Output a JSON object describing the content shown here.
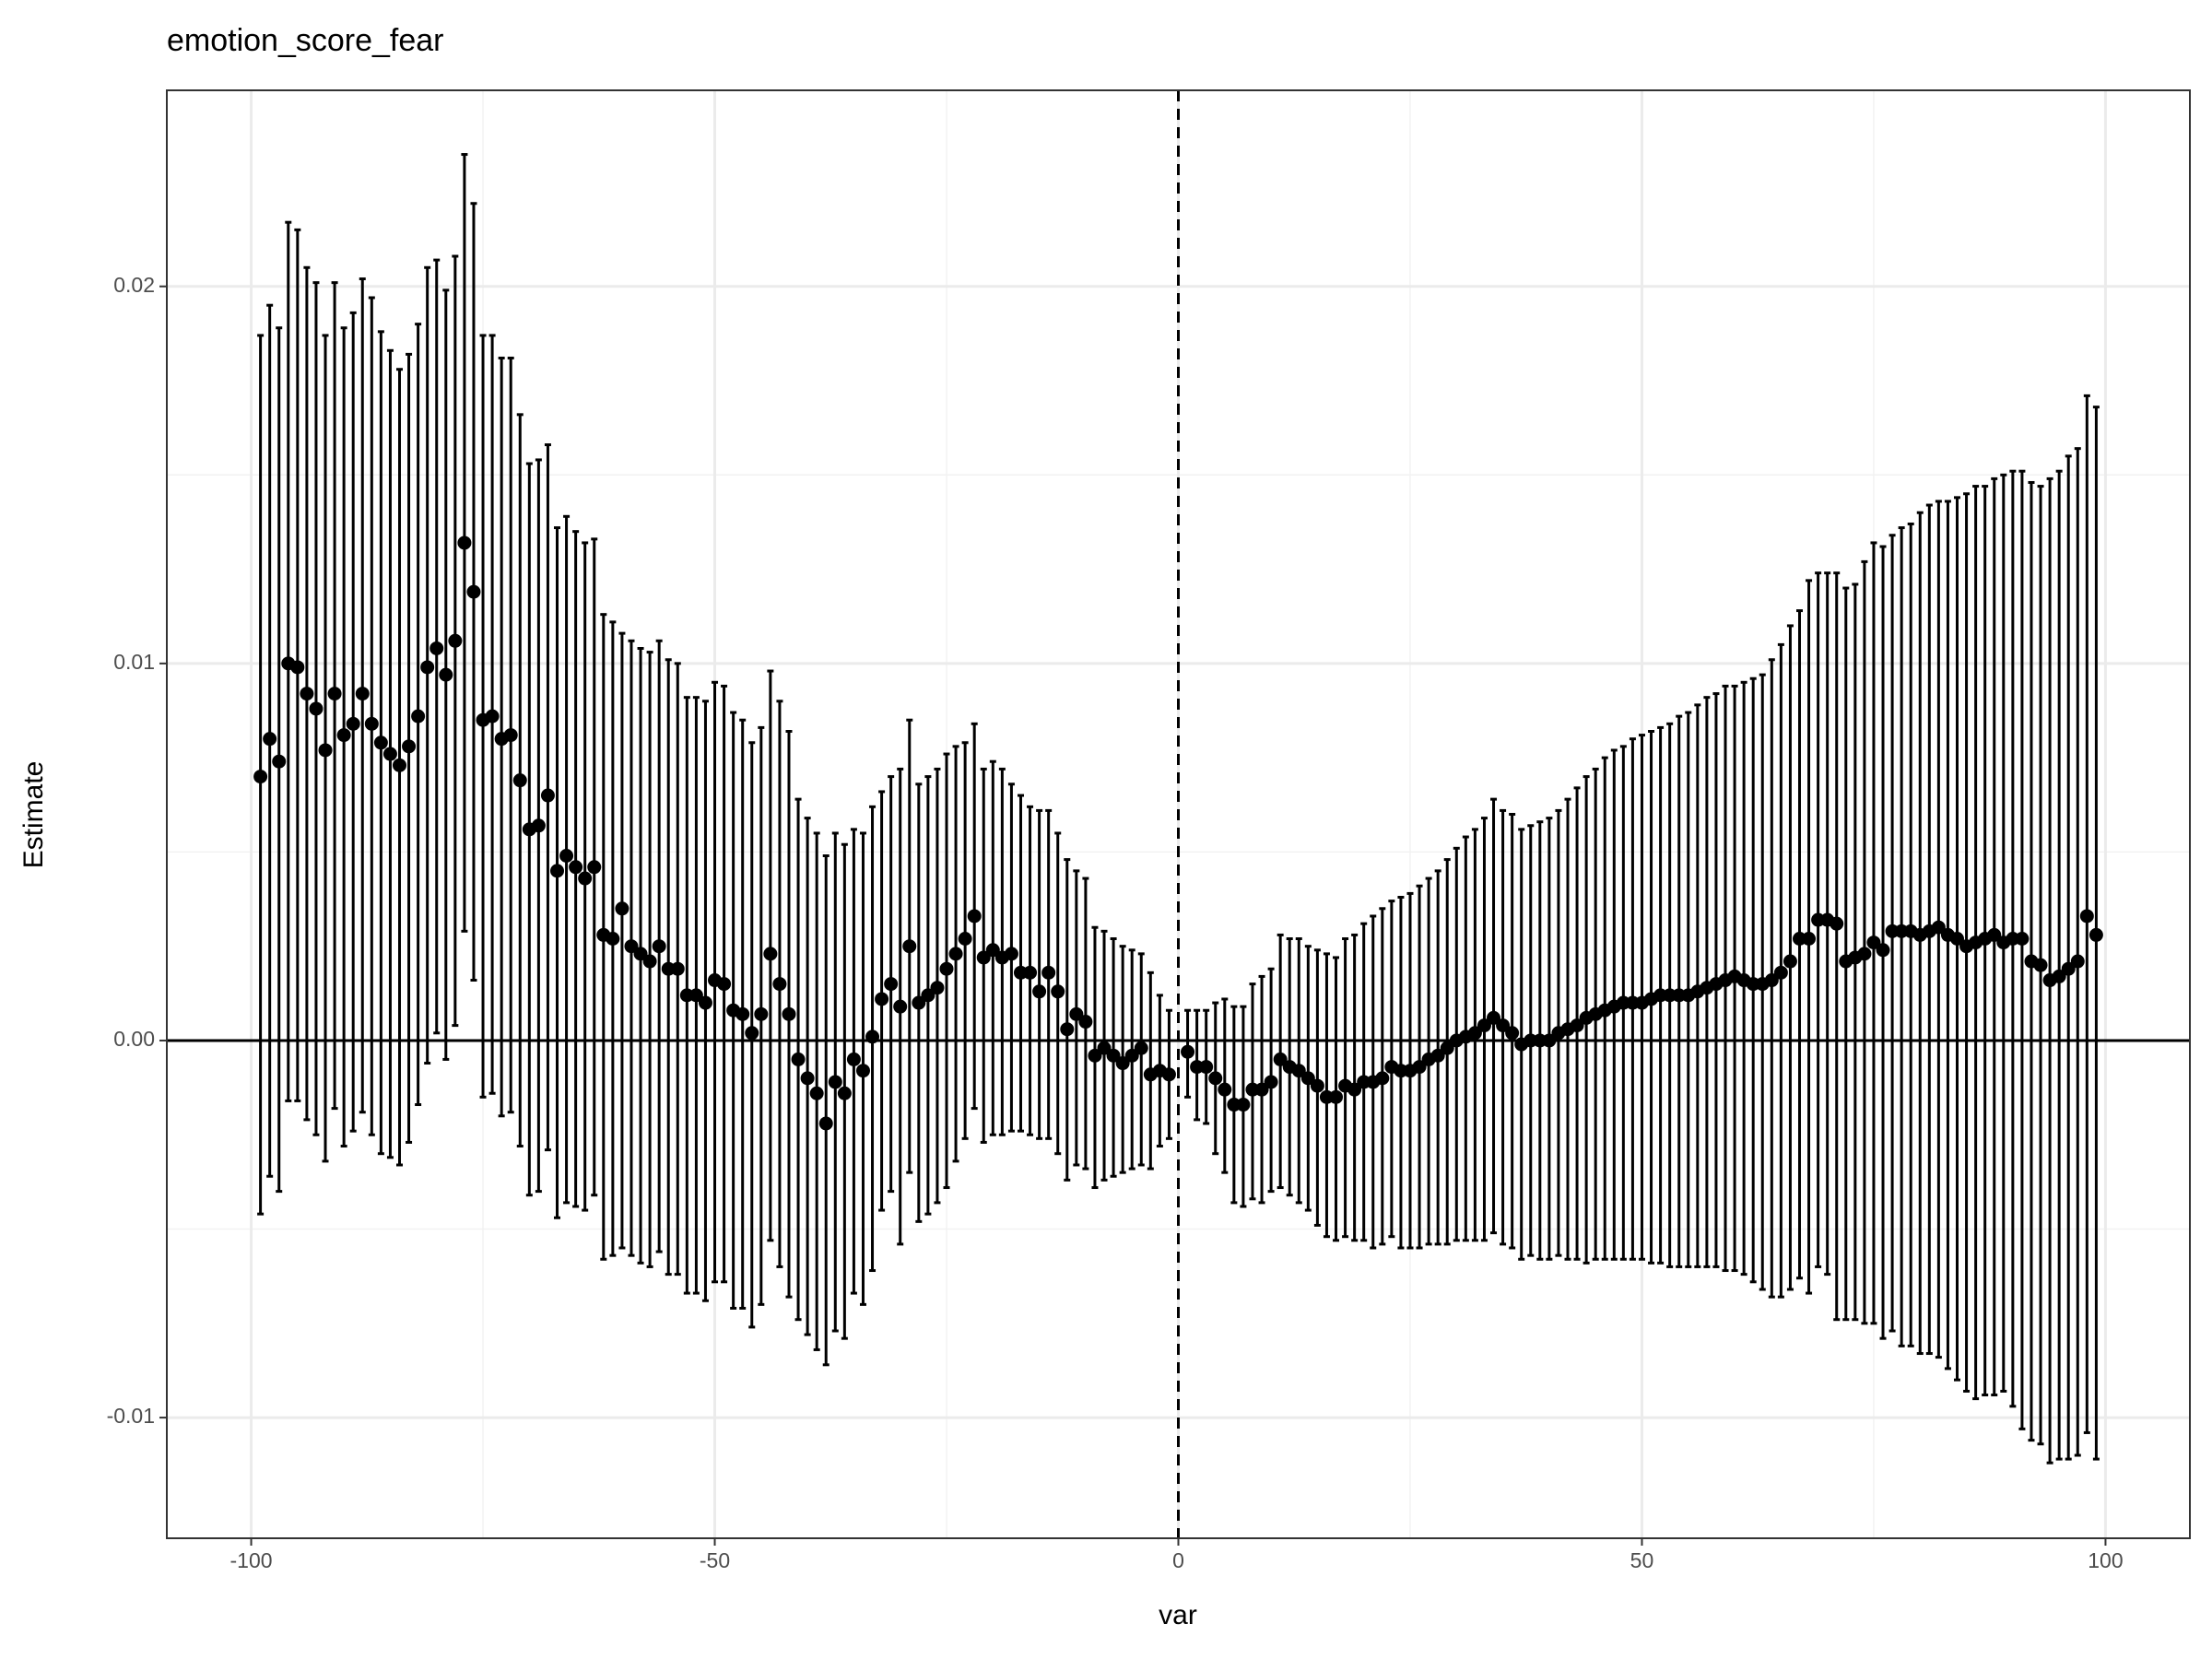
{
  "chart_data": {
    "type": "errorbar",
    "title": "emotion_score_fear",
    "x_label": "var",
    "y_label": "Estimate",
    "xlim": [
      -109.1,
      109.1
    ],
    "ylim": [
      -0.0132,
      0.0252
    ],
    "xticks": [
      -100,
      -50,
      0,
      50,
      100
    ],
    "xminor": [
      -75,
      -25,
      25,
      75
    ],
    "yticks": [
      {
        "value": -0.01,
        "label": "-0.01"
      },
      {
        "value": 0,
        "label": "0.00"
      },
      {
        "value": 0.01,
        "label": "0.01"
      },
      {
        "value": 0.02,
        "label": "0.02"
      }
    ],
    "yminor": [
      -0.005,
      0.005,
      0.015
    ],
    "grid": true,
    "hline": 0,
    "vline": 0,
    "color": "#000000",
    "x": [
      -99,
      -98,
      -97,
      -96,
      -95,
      -94,
      -93,
      -92,
      -91,
      -90,
      -89,
      -88,
      -87,
      -86,
      -85,
      -84,
      -83,
      -82,
      -81,
      -80,
      -79,
      -78,
      -77,
      -76,
      -75,
      -74,
      -73,
      -72,
      -71,
      -70,
      -69,
      -68,
      -67,
      -66,
      -65,
      -64,
      -63,
      -62,
      -61,
      -60,
      -59,
      -58,
      -57,
      -56,
      -55,
      -54,
      -53,
      -52,
      -51,
      -50,
      -49,
      -48,
      -47,
      -46,
      -45,
      -44,
      -43,
      -42,
      -41,
      -40,
      -39,
      -38,
      -37,
      -36,
      -35,
      -34,
      -33,
      -32,
      -31,
      -30,
      -29,
      -28,
      -27,
      -26,
      -25,
      -24,
      -23,
      -22,
      -21,
      -20,
      -19,
      -18,
      -17,
      -16,
      -15,
      -14,
      -13,
      -12,
      -11,
      -10,
      -9,
      -8,
      -7,
      -6,
      -5,
      -4,
      -3,
      -2,
      -1,
      1,
      2,
      3,
      4,
      5,
      6,
      7,
      8,
      9,
      10,
      11,
      12,
      13,
      14,
      15,
      16,
      17,
      18,
      19,
      20,
      21,
      22,
      23,
      24,
      25,
      26,
      27,
      28,
      29,
      30,
      31,
      32,
      33,
      34,
      35,
      36,
      37,
      38,
      39,
      40,
      41,
      42,
      43,
      44,
      45,
      46,
      47,
      48,
      49,
      50,
      51,
      52,
      53,
      54,
      55,
      56,
      57,
      58,
      59,
      60,
      61,
      62,
      63,
      64,
      65,
      66,
      67,
      68,
      69,
      70,
      71,
      72,
      73,
      74,
      75,
      76,
      77,
      78,
      79,
      80,
      81,
      82,
      83,
      84,
      85,
      86,
      87,
      88,
      89,
      90,
      91,
      92,
      93,
      94,
      95,
      96,
      97,
      98,
      99
    ],
    "values": [
      0.007,
      0.008,
      0.0074,
      0.01,
      0.0099,
      0.0092,
      0.0088,
      0.0077,
      0.0092,
      0.0081,
      0.0084,
      0.0092,
      0.0084,
      0.0079,
      0.0076,
      0.0073,
      0.0078,
      0.0086,
      0.0099,
      0.0104,
      0.0097,
      0.0106,
      0.0132,
      0.0119,
      0.0085,
      0.0086,
      0.008,
      0.0081,
      0.0069,
      0.0056,
      0.0057,
      0.0065,
      0.0045,
      0.0049,
      0.0046,
      0.0043,
      0.0046,
      0.0028,
      0.0027,
      0.0035,
      0.0025,
      0.0023,
      0.0021,
      0.0025,
      0.0019,
      0.0019,
      0.0012,
      0.0012,
      0.001,
      0.0016,
      0.0015,
      0.0008,
      0.0007,
      0.0002,
      0.0007,
      0.0023,
      0.0015,
      0.0007,
      -0.0005,
      -0.001,
      -0.0014,
      -0.0022,
      -0.0011,
      -0.0014,
      -0.0005,
      -0.0008,
      0.0001,
      0.0011,
      0.0015,
      0.0009,
      0.0025,
      0.001,
      0.0012,
      0.0014,
      0.0019,
      0.0023,
      0.0027,
      0.0033,
      0.0022,
      0.0024,
      0.0022,
      0.0023,
      0.0018,
      0.0018,
      0.0013,
      0.0018,
      0.0013,
      0.0003,
      0.0007,
      0.0005,
      -0.0004,
      -0.0002,
      -0.0004,
      -0.0006,
      -0.0004,
      -0.0002,
      -0.0009,
      -0.0008,
      -0.0009,
      -0.0003,
      -0.0007,
      -0.0007,
      -0.001,
      -0.0013,
      -0.0017,
      -0.0017,
      -0.0013,
      -0.0013,
      -0.0011,
      -0.0005,
      -0.0007,
      -0.0008,
      -0.001,
      -0.0012,
      -0.0015,
      -0.0015,
      -0.0012,
      -0.0013,
      -0.0011,
      -0.0011,
      -0.001,
      -0.0007,
      -0.0008,
      -0.0008,
      -0.0007,
      -0.0005,
      -0.0004,
      -0.0002,
      0.0,
      0.0001,
      0.0002,
      0.0004,
      0.0006,
      0.0004,
      0.0002,
      -0.0001,
      0.0,
      0.0,
      0.0,
      0.0002,
      0.0003,
      0.0004,
      0.0006,
      0.0007,
      0.0008,
      0.0009,
      0.001,
      0.001,
      0.001,
      0.0011,
      0.0012,
      0.0012,
      0.0012,
      0.0012,
      0.0013,
      0.0014,
      0.0015,
      0.0016,
      0.0017,
      0.0016,
      0.0015,
      0.0015,
      0.0016,
      0.0018,
      0.0021,
      0.0027,
      0.0027,
      0.0032,
      0.0032,
      0.0031,
      0.0021,
      0.0022,
      0.0023,
      0.0026,
      0.0024,
      0.0029,
      0.0029,
      0.0029,
      0.0028,
      0.0029,
      0.003,
      0.0028,
      0.0027,
      0.0025,
      0.0026,
      0.0027,
      0.0028,
      0.0026,
      0.0027,
      0.0027,
      0.0021,
      0.002,
      0.0016,
      0.0017,
      0.0019,
      0.0021,
      0.0033,
      0.0028
    ],
    "upper": [
      0.0187,
      0.0195,
      0.0189,
      0.0217,
      0.0215,
      0.0205,
      0.0201,
      0.0187,
      0.0201,
      0.0189,
      0.0193,
      0.0202,
      0.0197,
      0.0188,
      0.0183,
      0.0178,
      0.0182,
      0.019,
      0.0205,
      0.0207,
      0.0199,
      0.0208,
      0.0235,
      0.0222,
      0.0187,
      0.0187,
      0.0181,
      0.0181,
      0.0166,
      0.0153,
      0.0154,
      0.0158,
      0.0136,
      0.0139,
      0.0135,
      0.0132,
      0.0133,
      0.0113,
      0.0111,
      0.0108,
      0.0106,
      0.0104,
      0.0103,
      0.0106,
      0.0101,
      0.01,
      0.0091,
      0.0091,
      0.009,
      0.0095,
      0.0094,
      0.0087,
      0.0085,
      0.0079,
      0.0083,
      0.0098,
      0.009,
      0.0082,
      0.0064,
      0.0059,
      0.0055,
      0.0049,
      0.0055,
      0.0052,
      0.0056,
      0.0055,
      0.0062,
      0.0066,
      0.007,
      0.0072,
      0.0085,
      0.0068,
      0.007,
      0.0072,
      0.0076,
      0.0078,
      0.0079,
      0.0084,
      0.0072,
      0.0074,
      0.0072,
      0.0068,
      0.0065,
      0.0062,
      0.0061,
      0.0061,
      0.0055,
      0.0048,
      0.0045,
      0.0043,
      0.003,
      0.0029,
      0.0027,
      0.0025,
      0.0024,
      0.0023,
      0.0018,
      0.0012,
      0.0008,
      0.0008,
      0.0008,
      0.0008,
      0.001,
      0.0011,
      0.0009,
      0.0009,
      0.0015,
      0.0017,
      0.0019,
      0.0028,
      0.0027,
      0.0027,
      0.0025,
      0.0024,
      0.0023,
      0.0022,
      0.0027,
      0.0028,
      0.0031,
      0.0033,
      0.0035,
      0.0037,
      0.0038,
      0.0039,
      0.0041,
      0.0043,
      0.0045,
      0.0048,
      0.0051,
      0.0054,
      0.0056,
      0.0059,
      0.0064,
      0.0061,
      0.006,
      0.0056,
      0.0057,
      0.0058,
      0.0059,
      0.0061,
      0.0064,
      0.0067,
      0.007,
      0.0072,
      0.0075,
      0.0077,
      0.0078,
      0.008,
      0.0081,
      0.0082,
      0.0083,
      0.0084,
      0.0086,
      0.0087,
      0.0089,
      0.0091,
      0.0092,
      0.0094,
      0.0094,
      0.0095,
      0.0096,
      0.0097,
      0.0101,
      0.0105,
      0.011,
      0.0114,
      0.0122,
      0.0124,
      0.0124,
      0.0124,
      0.012,
      0.0121,
      0.0127,
      0.0132,
      0.0131,
      0.0134,
      0.0136,
      0.0137,
      0.014,
      0.0142,
      0.0143,
      0.0143,
      0.0144,
      0.0145,
      0.0147,
      0.0147,
      0.0149,
      0.015,
      0.0151,
      0.0151,
      0.0148,
      0.0147,
      0.0149,
      0.0151,
      0.0155,
      0.0157,
      0.0171,
      0.0168
    ],
    "lower": [
      -0.0046,
      -0.0036,
      -0.004,
      -0.0016,
      -0.0016,
      -0.0021,
      -0.0025,
      -0.0032,
      -0.0018,
      -0.0028,
      -0.0024,
      -0.0019,
      -0.0025,
      -0.003,
      -0.0031,
      -0.0033,
      -0.0027,
      -0.0017,
      -0.0006,
      0.0002,
      -0.0005,
      0.0004,
      0.0029,
      0.0016,
      -0.0015,
      -0.0014,
      -0.002,
      -0.0019,
      -0.0028,
      -0.0041,
      -0.004,
      -0.0029,
      -0.0047,
      -0.0043,
      -0.0044,
      -0.0045,
      -0.0041,
      -0.0058,
      -0.0057,
      -0.0055,
      -0.0057,
      -0.0059,
      -0.006,
      -0.0056,
      -0.0062,
      -0.0062,
      -0.0067,
      -0.0067,
      -0.0069,
      -0.0064,
      -0.0064,
      -0.0071,
      -0.0071,
      -0.0076,
      -0.007,
      -0.0053,
      -0.006,
      -0.0068,
      -0.0074,
      -0.0078,
      -0.0082,
      -0.0086,
      -0.0077,
      -0.0079,
      -0.0067,
      -0.007,
      -0.0061,
      -0.0045,
      -0.004,
      -0.0054,
      -0.0035,
      -0.0048,
      -0.0046,
      -0.0043,
      -0.0039,
      -0.0032,
      -0.0026,
      -0.0018,
      -0.0027,
      -0.0025,
      -0.0025,
      -0.0024,
      -0.0024,
      -0.0025,
      -0.0026,
      -0.0026,
      -0.003,
      -0.0037,
      -0.0033,
      -0.0034,
      -0.0039,
      -0.0037,
      -0.0036,
      -0.0035,
      -0.0034,
      -0.0033,
      -0.0034,
      -0.0028,
      -0.0026,
      -0.0015,
      -0.0021,
      -0.0022,
      -0.003,
      -0.0035,
      -0.0043,
      -0.0044,
      -0.0042,
      -0.0043,
      -0.004,
      -0.0039,
      -0.0041,
      -0.0043,
      -0.0045,
      -0.0049,
      -0.0052,
      -0.0053,
      -0.0052,
      -0.0053,
      -0.0053,
      -0.0055,
      -0.0054,
      -0.0052,
      -0.0055,
      -0.0055,
      -0.0055,
      -0.0054,
      -0.0054,
      -0.0054,
      -0.0053,
      -0.0053,
      -0.0053,
      -0.0053,
      -0.0051,
      -0.0054,
      -0.0055,
      -0.0058,
      -0.0057,
      -0.0058,
      -0.0058,
      -0.0057,
      -0.0058,
      -0.0058,
      -0.0059,
      -0.0058,
      -0.0058,
      -0.0058,
      -0.0058,
      -0.0058,
      -0.0058,
      -0.0059,
      -0.0059,
      -0.006,
      -0.006,
      -0.006,
      -0.006,
      -0.006,
      -0.006,
      -0.0061,
      -0.0061,
      -0.0062,
      -0.0064,
      -0.0066,
      -0.0068,
      -0.0068,
      -0.0066,
      -0.0063,
      -0.0067,
      -0.006,
      -0.0062,
      -0.0074,
      -0.0074,
      -0.0074,
      -0.0075,
      -0.0075,
      -0.0079,
      -0.0077,
      -0.0081,
      -0.0081,
      -0.0083,
      -0.0083,
      -0.0084,
      -0.0087,
      -0.009,
      -0.0093,
      -0.0095,
      -0.0094,
      -0.0094,
      -0.0093,
      -0.0097,
      -0.0103,
      -0.0106,
      -0.0107,
      -0.0112,
      -0.0111,
      -0.0111,
      -0.011,
      -0.0104,
      -0.0111
    ]
  }
}
